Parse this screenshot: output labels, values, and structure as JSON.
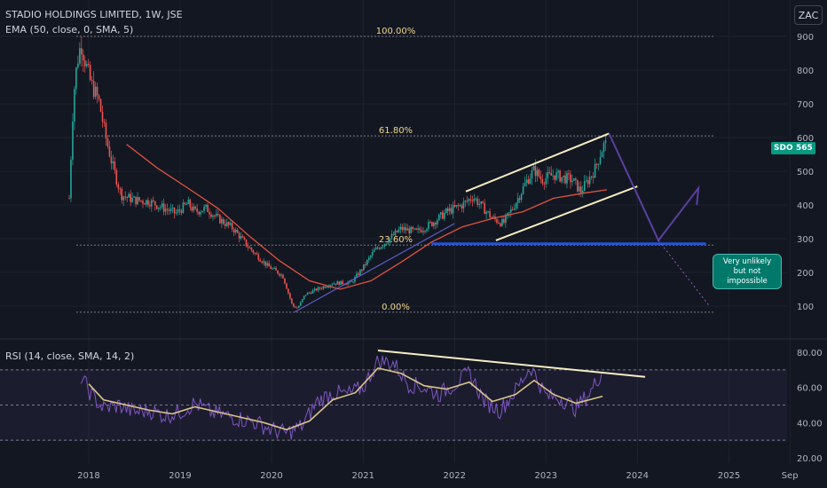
{
  "header": {
    "title": "STADIO HOLDINGS LIMITED, 1W, JSE",
    "ema_label": "EMA (50, close, 0, SMA, 5)",
    "rsi_label": "RSI (14, close, SMA, 14, 2)",
    "currency": "ZAC"
  },
  "price_tags": {
    "symbol": "SDO",
    "last_price": "565"
  },
  "fib_levels": [
    {
      "label": "100.00%",
      "price": 900
    },
    {
      "label": "61.80%",
      "price": 605
    },
    {
      "label": "23.60%",
      "price": 281
    },
    {
      "label": "0.00%",
      "price": 82
    }
  ],
  "annotation": {
    "line1": "Very unlikely",
    "line2": "but not impossible"
  },
  "colors": {
    "background": "#131722",
    "up": "#26a69a",
    "down": "#ef5350",
    "ema": "#e0533f",
    "rsi": "#7e57c2",
    "rsi_ma": "#d8c38a",
    "trend": "#f5edc2",
    "projection": "#5b3fa0",
    "fib": "#787b86"
  },
  "chart_data": [
    {
      "type": "candlestick",
      "title": "STADIO HOLDINGS LIMITED, 1W, JSE",
      "currency": "ZAC",
      "ylim": [
        70,
        930
      ],
      "y_ticks": [
        100,
        200,
        300,
        400,
        500,
        600,
        700,
        800,
        900
      ],
      "x_ticks": [
        "2018",
        "2019",
        "2020",
        "2021",
        "2022",
        "2023",
        "2024",
        "2025",
        "Sep"
      ],
      "x_tick_dates": [
        "2018-01-01",
        "2019-01-01",
        "2020-01-01",
        "2021-01-01",
        "2022-01-01",
        "2023-01-01",
        "2024-01-01",
        "2025-01-01",
        "2025-09-01"
      ],
      "last_price": 565,
      "price_path": [
        [
          "2017-10-15",
          420
        ],
        [
          "2017-11-01",
          720
        ],
        [
          "2017-11-15",
          820
        ],
        [
          "2017-12-01",
          880
        ],
        [
          "2017-12-20",
          820
        ],
        [
          "2018-01-10",
          760
        ],
        [
          "2018-02-10",
          710
        ],
        [
          "2018-03-10",
          600
        ],
        [
          "2018-04-05",
          520
        ],
        [
          "2018-05-10",
          430
        ],
        [
          "2018-07-01",
          415
        ],
        [
          "2018-09-01",
          410
        ],
        [
          "2018-10-15",
          395
        ],
        [
          "2018-12-15",
          375
        ],
        [
          "2019-02-01",
          405
        ],
        [
          "2019-03-01",
          380
        ],
        [
          "2019-04-15",
          390
        ],
        [
          "2019-06-01",
          360
        ],
        [
          "2019-08-01",
          330
        ],
        [
          "2019-10-01",
          275
        ],
        [
          "2019-12-15",
          220
        ],
        [
          "2020-02-15",
          190
        ],
        [
          "2020-03-25",
          100
        ],
        [
          "2020-04-15",
          95
        ],
        [
          "2020-05-15",
          135
        ],
        [
          "2020-07-01",
          150
        ],
        [
          "2020-09-01",
          168
        ],
        [
          "2020-11-15",
          170
        ],
        [
          "2021-01-01",
          215
        ],
        [
          "2021-02-15",
          265
        ],
        [
          "2021-04-01",
          290
        ],
        [
          "2021-06-01",
          330
        ],
        [
          "2021-08-01",
          320
        ],
        [
          "2021-10-01",
          345
        ],
        [
          "2021-12-01",
          380
        ],
        [
          "2022-02-01",
          400
        ],
        [
          "2022-03-15",
          425
        ],
        [
          "2022-04-15",
          400
        ],
        [
          "2022-06-01",
          360
        ],
        [
          "2022-07-15",
          345
        ],
        [
          "2022-09-01",
          405
        ],
        [
          "2022-10-15",
          470
        ],
        [
          "2022-11-15",
          505
        ],
        [
          "2022-12-15",
          475
        ],
        [
          "2023-02-01",
          490
        ],
        [
          "2023-03-15",
          480
        ],
        [
          "2023-04-15",
          475
        ],
        [
          "2023-05-20",
          440
        ],
        [
          "2023-06-15",
          470
        ],
        [
          "2023-07-15",
          505
        ],
        [
          "2023-08-10",
          560
        ],
        [
          "2023-08-25",
          585
        ],
        [
          "2023-09-01",
          565
        ]
      ],
      "ema_path": [
        [
          "2018-06-01",
          580
        ],
        [
          "2018-10-01",
          510
        ],
        [
          "2019-02-01",
          450
        ],
        [
          "2019-06-01",
          390
        ],
        [
          "2019-10-01",
          310
        ],
        [
          "2020-02-01",
          235
        ],
        [
          "2020-06-01",
          175
        ],
        [
          "2020-10-01",
          150
        ],
        [
          "2021-02-01",
          175
        ],
        [
          "2021-06-01",
          230
        ],
        [
          "2021-10-01",
          290
        ],
        [
          "2022-02-01",
          335
        ],
        [
          "2022-06-01",
          360
        ],
        [
          "2022-10-01",
          380
        ],
        [
          "2023-02-01",
          420
        ],
        [
          "2023-06-01",
          435
        ],
        [
          "2023-09-01",
          445
        ]
      ],
      "channel_upper": [
        [
          "2022-02-15",
          440
        ],
        [
          "2023-09-10",
          612
        ]
      ],
      "channel_lower": [
        [
          "2022-06-15",
          295
        ],
        [
          "2024-01-01",
          455
        ]
      ],
      "support_line": [
        [
          "2020-04-01",
          82
        ],
        [
          "2022-01-01",
          345
        ]
      ],
      "support_zone": [
        [
          "2021-10-01",
          285
        ],
        [
          "2024-10-01",
          285
        ]
      ],
      "projection_main": [
        [
          "2023-09-10",
          612
        ],
        [
          "2024-03-25",
          295
        ],
        [
          "2024-09-01",
          450
        ],
        [
          "2024-08-25",
          400
        ]
      ],
      "projection_alt": [
        [
          "2024-03-25",
          295
        ],
        [
          "2024-10-15",
          100
        ]
      ]
    },
    {
      "type": "line",
      "title": "RSI (14, close, SMA, 14, 2)",
      "ylim": [
        20,
        82
      ],
      "y_ticks": [
        20.0,
        40.0,
        60.0,
        80.0
      ],
      "bands": [
        30,
        50,
        70
      ],
      "series": [
        {
          "values": [
            [
              "2017-12-01",
              66
            ],
            [
              "2018-01-15",
              55
            ],
            [
              "2018-03-01",
              48
            ],
            [
              "2018-05-01",
              50
            ],
            [
              "2018-07-01",
              46
            ],
            [
              "2018-09-01",
              47
            ],
            [
              "2018-11-01",
              44
            ],
            [
              "2019-01-01",
              46
            ],
            [
              "2019-03-01",
              51
            ],
            [
              "2019-05-01",
              46
            ],
            [
              "2019-07-01",
              44
            ],
            [
              "2019-09-01",
              42
            ],
            [
              "2019-11-01",
              40
            ],
            [
              "2020-01-01",
              36
            ],
            [
              "2020-03-01",
              34
            ],
            [
              "2020-05-01",
              38
            ],
            [
              "2020-07-01",
              52
            ],
            [
              "2020-09-01",
              57
            ],
            [
              "2020-11-01",
              56
            ],
            [
              "2021-01-01",
              60
            ],
            [
              "2021-03-01",
              75
            ],
            [
              "2021-05-01",
              74
            ],
            [
              "2021-07-01",
              62
            ],
            [
              "2021-09-01",
              60
            ],
            [
              "2021-11-01",
              56
            ],
            [
              "2022-01-01",
              62
            ],
            [
              "2022-03-01",
              68
            ],
            [
              "2022-05-01",
              52
            ],
            [
              "2022-07-01",
              47
            ],
            [
              "2022-09-01",
              58
            ],
            [
              "2022-11-01",
              72
            ],
            [
              "2023-01-01",
              55
            ],
            [
              "2023-03-01",
              54
            ],
            [
              "2023-05-01",
              48
            ],
            [
              "2023-07-01",
              58
            ],
            [
              "2023-08-15",
              70
            ]
          ]
        },
        {
          "values": [
            [
              "2018-01-01",
              62
            ],
            [
              "2018-03-01",
              53
            ],
            [
              "2018-06-01",
              50
            ],
            [
              "2018-09-01",
              47
            ],
            [
              "2018-12-01",
              45
            ],
            [
              "2019-03-01",
              49
            ],
            [
              "2019-06-01",
              46
            ],
            [
              "2019-09-01",
              43
            ],
            [
              "2019-12-01",
              40
            ],
            [
              "2020-03-01",
              36
            ],
            [
              "2020-06-01",
              41
            ],
            [
              "2020-09-01",
              53
            ],
            [
              "2020-12-01",
              57
            ],
            [
              "2021-03-01",
              71
            ],
            [
              "2021-06-01",
              68
            ],
            [
              "2021-09-01",
              61
            ],
            [
              "2021-12-01",
              59
            ],
            [
              "2022-03-01",
              63
            ],
            [
              "2022-06-01",
              52
            ],
            [
              "2022-09-01",
              56
            ],
            [
              "2022-11-15",
              64
            ],
            [
              "2023-02-01",
              56
            ],
            [
              "2023-05-01",
              51
            ],
            [
              "2023-08-15",
              55
            ]
          ]
        }
      ],
      "trendline": [
        [
          "2021-03-01",
          81
        ],
        [
          "2024-02-01",
          66
        ]
      ]
    }
  ]
}
